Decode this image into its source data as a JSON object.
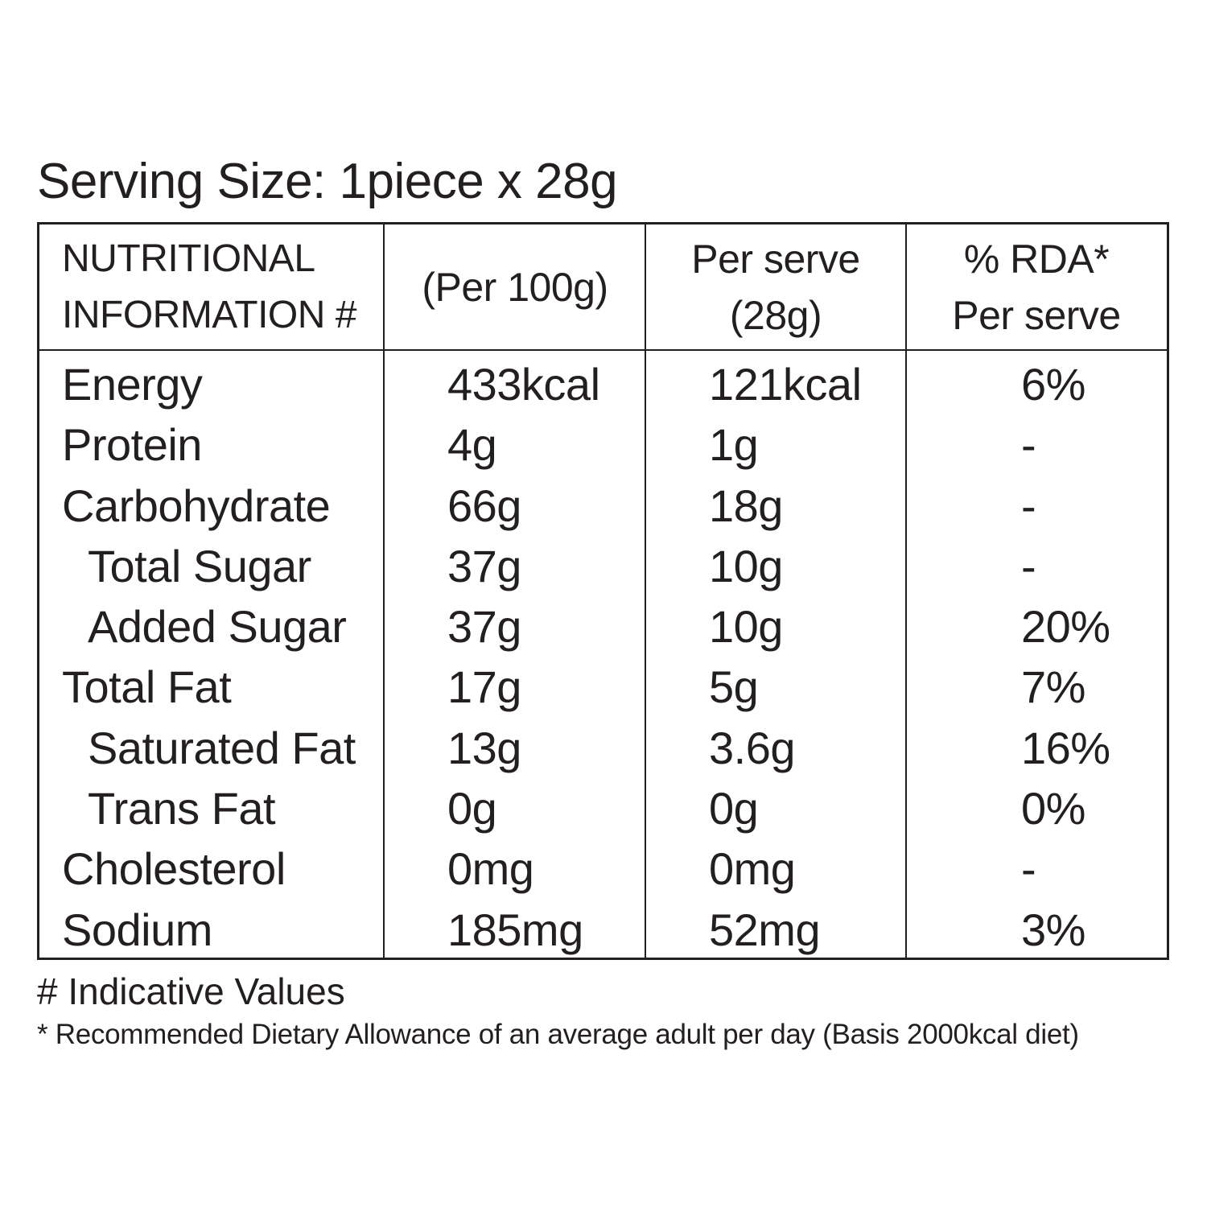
{
  "serving_size": "Serving Size: 1piece x 28g",
  "table": {
    "headers": [
      [
        "NUTRITIONAL",
        "INFORMATION #"
      ],
      [
        "(Per 100g)"
      ],
      [
        "Per serve",
        "(28g)"
      ],
      [
        "% RDA*",
        "Per serve"
      ]
    ],
    "rows": [
      {
        "name": "Energy",
        "per100": "433kcal",
        "perServe": "121kcal",
        "rda": "6%",
        "indent": false
      },
      {
        "name": "Protein",
        "per100": "4g",
        "perServe": "1g",
        "rda": "-",
        "indent": false
      },
      {
        "name": "Carbohydrate",
        "per100": "66g",
        "perServe": "18g",
        "rda": "-",
        "indent": false
      },
      {
        "name": "Total Sugar",
        "per100": "37g",
        "perServe": "10g",
        "rda": "-",
        "indent": true
      },
      {
        "name": "Added Sugar",
        "per100": "37g",
        "perServe": "10g",
        "rda": "20%",
        "indent": true
      },
      {
        "name": "Total Fat",
        "per100": "17g",
        "perServe": "5g",
        "rda": "7%",
        "indent": false
      },
      {
        "name": "Saturated Fat",
        "per100": "13g",
        "perServe": "3.6g",
        "rda": "16%",
        "indent": true
      },
      {
        "name": "Trans Fat",
        "per100": "0g",
        "perServe": "0g",
        "rda": "0%",
        "indent": true
      },
      {
        "name": "Cholesterol",
        "per100": "0mg",
        "perServe": "0mg",
        "rda": "-",
        "indent": false
      },
      {
        "name": "Sodium",
        "per100": "185mg",
        "perServe": "52mg",
        "rda": "3%",
        "indent": false
      }
    ]
  },
  "footnotes": {
    "indicative": "# Indicative Values",
    "rda": "* Recommended Dietary Allowance of an average adult per day (Basis 2000kcal diet)"
  }
}
